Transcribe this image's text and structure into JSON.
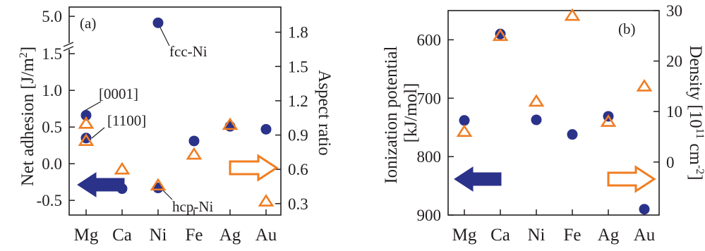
{
  "colors": {
    "circle": "#2b3289",
    "triangle": "#f07d22",
    "axis": "#231f20",
    "arrow_left_fill": "#2b3289",
    "arrow_right_fill": "#ffffff"
  },
  "chart_data": [
    {
      "type": "scatter",
      "panel_label": "(a)",
      "categories": [
        "Mg",
        "Ca",
        "Ni",
        "Fe",
        "Ag",
        "Au"
      ],
      "ylabel_left": "Net adhesion [J/m²]",
      "ylabel_left_parts": [
        "Net adhesion [J/m",
        "2",
        "]"
      ],
      "ylabel_right": "Aspect ratio",
      "y_left_break": true,
      "y_left_ticks_lower": [
        "-0.5",
        "0.0",
        "0.5",
        "1.0",
        "1.5"
      ],
      "y_left_ticks_upper": [
        "5.0"
      ],
      "y_right_ticks": [
        "0.3",
        "0.6",
        "0.9",
        "1.2",
        "1.5",
        "1.8"
      ],
      "y_left_lower_range": [
        -0.7,
        1.55
      ],
      "y_left_upper_range": [
        4.75,
        5.1
      ],
      "y_right_range": [
        0.2,
        2.02
      ],
      "series": [
        {
          "marker": "circle",
          "axis": "left",
          "points": [
            {
              "x": "Mg",
              "y": 0.66
            },
            {
              "x": "Mg",
              "y": 0.35
            },
            {
              "x": "Ca",
              "y": -0.34
            },
            {
              "x": "Ni",
              "y": 4.93
            },
            {
              "x": "Ni",
              "y": -0.33
            },
            {
              "x": "Fe",
              "y": 0.31
            },
            {
              "x": "Ag",
              "y": 0.51
            },
            {
              "x": "Au",
              "y": 0.47
            }
          ]
        },
        {
          "marker": "triangle",
          "axis": "right",
          "points": [
            {
              "x": "Mg",
              "y": 1.0
            },
            {
              "x": "Mg",
              "y": 0.85
            },
            {
              "x": "Ca",
              "y": 0.6
            },
            {
              "x": "Ni",
              "y": 0.46
            },
            {
              "x": "Fe",
              "y": 0.73
            },
            {
              "x": "Ag",
              "y": 0.99
            },
            {
              "x": "Au",
              "y": 0.32
            }
          ]
        }
      ],
      "annotations": [
        "fcc-Ni",
        "[0001]",
        "[1100]",
        "hcp-Ni"
      ]
    },
    {
      "type": "scatter",
      "panel_label": "(b)",
      "categories": [
        "Mg",
        "Ca",
        "Ni",
        "Fe",
        "Ag",
        "Au"
      ],
      "ylabel_left": "Ionization potential [kJ/mol]",
      "ylabel_left_lines": [
        "Ionization potential",
        "[kJ/mol]"
      ],
      "ylabel_right": "Density [10¹¹ cm⁻²]",
      "ylabel_right_parts": [
        "Density [10",
        "11",
        " cm",
        "-2",
        "]"
      ],
      "y_left_inverted": true,
      "y_left_ticks": [
        "600",
        "700",
        "800",
        "900"
      ],
      "y_right_ticks": [
        "0",
        "10",
        "20",
        "30"
      ],
      "y_left_range": [
        550,
        900
      ],
      "y_right_range": [
        -10.5,
        30
      ],
      "series": [
        {
          "marker": "circle",
          "axis": "left",
          "points": [
            {
              "x": "Mg",
              "y": 738
            },
            {
              "x": "Ca",
              "y": 590
            },
            {
              "x": "Ni",
              "y": 737
            },
            {
              "x": "Fe",
              "y": 762
            },
            {
              "x": "Ag",
              "y": 731
            },
            {
              "x": "Au",
              "y": 890
            }
          ]
        },
        {
          "marker": "triangle",
          "axis": "right",
          "points": [
            {
              "x": "Mg",
              "y": 6
            },
            {
              "x": "Ca",
              "y": 25
            },
            {
              "x": "Ni",
              "y": 12
            },
            {
              "x": "Fe",
              "y": 29
            },
            {
              "x": "Ag",
              "y": 8
            },
            {
              "x": "Au",
              "y": 15
            }
          ]
        }
      ]
    }
  ]
}
